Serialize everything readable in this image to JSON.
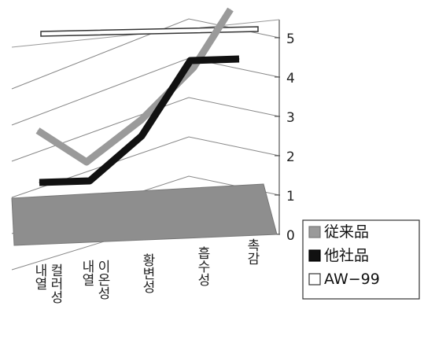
{
  "chart_data": {
    "type": "line",
    "style": "3d",
    "categories": [
      "내열 컬러성",
      "내열 이온성",
      "황변성",
      "흡수성",
      "촉감"
    ],
    "ylim": [
      0,
      5
    ],
    "yticks": [
      "0",
      "1",
      "2",
      "3",
      "4",
      "5"
    ],
    "grid": true,
    "legend_position": "right",
    "series": [
      {
        "name": "従来品",
        "values": [
          2.8,
          1.8,
          3.0,
          3.8,
          5.8
        ],
        "color": "#9a9a9a"
      },
      {
        "name": "他社品",
        "values": [
          1.3,
          1.3,
          2.5,
          4.5,
          4.5
        ],
        "color": "#111111"
      },
      {
        "name": "AW−99",
        "values": [
          5.0,
          5.0,
          5.0,
          5.0,
          5.0
        ],
        "color": "#ffffff"
      }
    ]
  }
}
